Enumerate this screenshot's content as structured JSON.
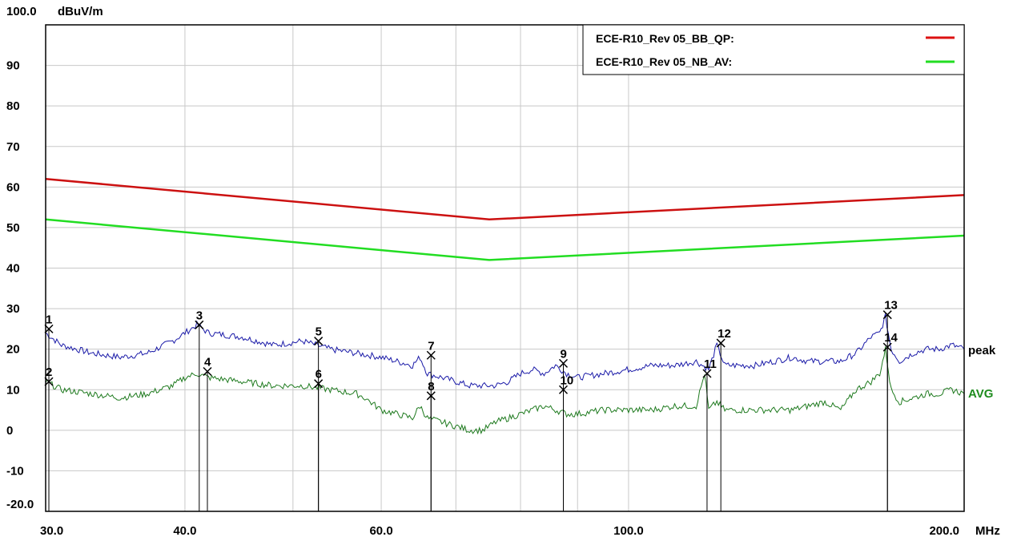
{
  "chart_data": {
    "type": "line",
    "y_unit": "dBuV/m",
    "x_unit": "MHz",
    "xscale": "log",
    "xlim": [
      30.0,
      200.0
    ],
    "ylim": [
      -20.0,
      100.0
    ],
    "grid": true,
    "y_ticks": [
      "100.0",
      "90",
      "80",
      "70",
      "60",
      "50",
      "40",
      "30",
      "20",
      "10",
      "0",
      "-10",
      "-20.0"
    ],
    "x_ticks": [
      {
        "value": 30.0,
        "label": "30.0"
      },
      {
        "value": 40.0,
        "label": "40.0"
      },
      {
        "value": 60.0,
        "label": "60.0"
      },
      {
        "value": 100.0,
        "label": "100.0"
      },
      {
        "value": 200.0,
        "label": "200.0"
      }
    ],
    "x_grid": [
      30,
      40,
      50,
      60,
      70,
      80,
      90,
      100,
      200
    ],
    "legend": {
      "placement": "top-right",
      "entries": [
        {
          "label": "ECE-R10_Rev 05_BB_QP:",
          "color": "#dd1111"
        },
        {
          "label": "ECE-R10_Rev 05_NB_AV:",
          "color": "#22dd22"
        }
      ]
    },
    "limit_lines": [
      {
        "name": "ECE-R10_Rev 05_BB_QP",
        "color": "#cc1111",
        "x": [
          30,
          75,
          200
        ],
        "y": [
          62,
          52,
          58
        ]
      },
      {
        "name": "ECE-R10_Rev 05_NB_AV",
        "color": "#22dd22",
        "x": [
          30,
          75,
          200
        ],
        "y": [
          52,
          42,
          48
        ]
      }
    ],
    "series": [
      {
        "name": "peak",
        "color": "#1a1aa8",
        "x": [
          30,
          31,
          33,
          35,
          37,
          39,
          40,
          41,
          42,
          45,
          48,
          51,
          54,
          57,
          60,
          62,
          64,
          65,
          66,
          68,
          70,
          72,
          74,
          76,
          78,
          80,
          82,
          84,
          86,
          88,
          90,
          95,
          100,
          105,
          110,
          115,
          118,
          120,
          122,
          125,
          130,
          135,
          140,
          145,
          150,
          155,
          160,
          165,
          168,
          170,
          172,
          175,
          180,
          185,
          190,
          195,
          200
        ],
        "y": [
          24,
          21,
          19,
          18,
          19,
          22,
          24,
          26,
          24,
          23,
          21,
          22,
          20,
          19,
          18,
          17,
          16,
          18,
          14,
          13,
          12,
          11,
          11,
          11,
          12,
          14,
          15,
          14,
          16,
          14,
          13,
          14,
          15,
          16,
          16,
          17,
          15,
          21,
          16,
          16,
          16,
          17,
          18,
          17,
          17,
          17,
          19,
          23,
          24,
          28,
          20,
          17,
          19,
          20,
          20,
          21,
          20
        ]
      },
      {
        "name": "AVG",
        "color": "#1e7a1e",
        "x": [
          30,
          31,
          33,
          35,
          37,
          39,
          40,
          41,
          42,
          45,
          48,
          51,
          54,
          57,
          58,
          60,
          62,
          64,
          65,
          66,
          68,
          70,
          72,
          74,
          76,
          78,
          80,
          82,
          84,
          86,
          88,
          90,
          95,
          100,
          105,
          110,
          115,
          117,
          118,
          120,
          122,
          125,
          130,
          135,
          140,
          145,
          150,
          155,
          160,
          165,
          168,
          170,
          172,
          175,
          180,
          185,
          190,
          195,
          200
        ],
        "y": [
          12,
          10,
          9,
          8,
          9,
          11,
          13,
          14,
          13,
          12,
          11,
          11,
          10,
          9,
          8,
          5,
          4,
          3,
          6,
          3,
          2,
          1,
          0,
          0,
          2,
          3,
          4,
          5,
          6,
          5,
          4,
          4,
          5,
          5,
          5,
          6,
          6,
          14,
          5,
          7,
          5,
          5,
          5,
          5,
          5,
          6,
          7,
          5,
          10,
          12,
          14,
          20,
          10,
          7,
          8,
          9,
          9,
          10,
          9
        ]
      }
    ],
    "markers": [
      {
        "label": "1",
        "x": 30.2,
        "y": 25.0
      },
      {
        "label": "2",
        "x": 30.2,
        "y": 12.0
      },
      {
        "label": "3",
        "x": 41.2,
        "y": 26.0
      },
      {
        "label": "4",
        "x": 41.9,
        "y": 14.5
      },
      {
        "label": "5",
        "x": 52.7,
        "y": 22.0
      },
      {
        "label": "6",
        "x": 52.7,
        "y": 11.5
      },
      {
        "label": "7",
        "x": 66.5,
        "y": 18.5
      },
      {
        "label": "8",
        "x": 66.5,
        "y": 8.5
      },
      {
        "label": "9",
        "x": 87.4,
        "y": 16.5
      },
      {
        "label": "10",
        "x": 87.4,
        "y": 10.0
      },
      {
        "label": "11",
        "x": 117.6,
        "y": 14.0
      },
      {
        "label": "12",
        "x": 121.0,
        "y": 21.5
      },
      {
        "label": "13",
        "x": 170.7,
        "y": 28.5
      },
      {
        "label": "14",
        "x": 170.7,
        "y": 20.5
      }
    ],
    "series_labels": [
      {
        "text": "peak",
        "color": "#000000"
      },
      {
        "text": "AVG",
        "color": "#1e8c1e"
      }
    ]
  }
}
